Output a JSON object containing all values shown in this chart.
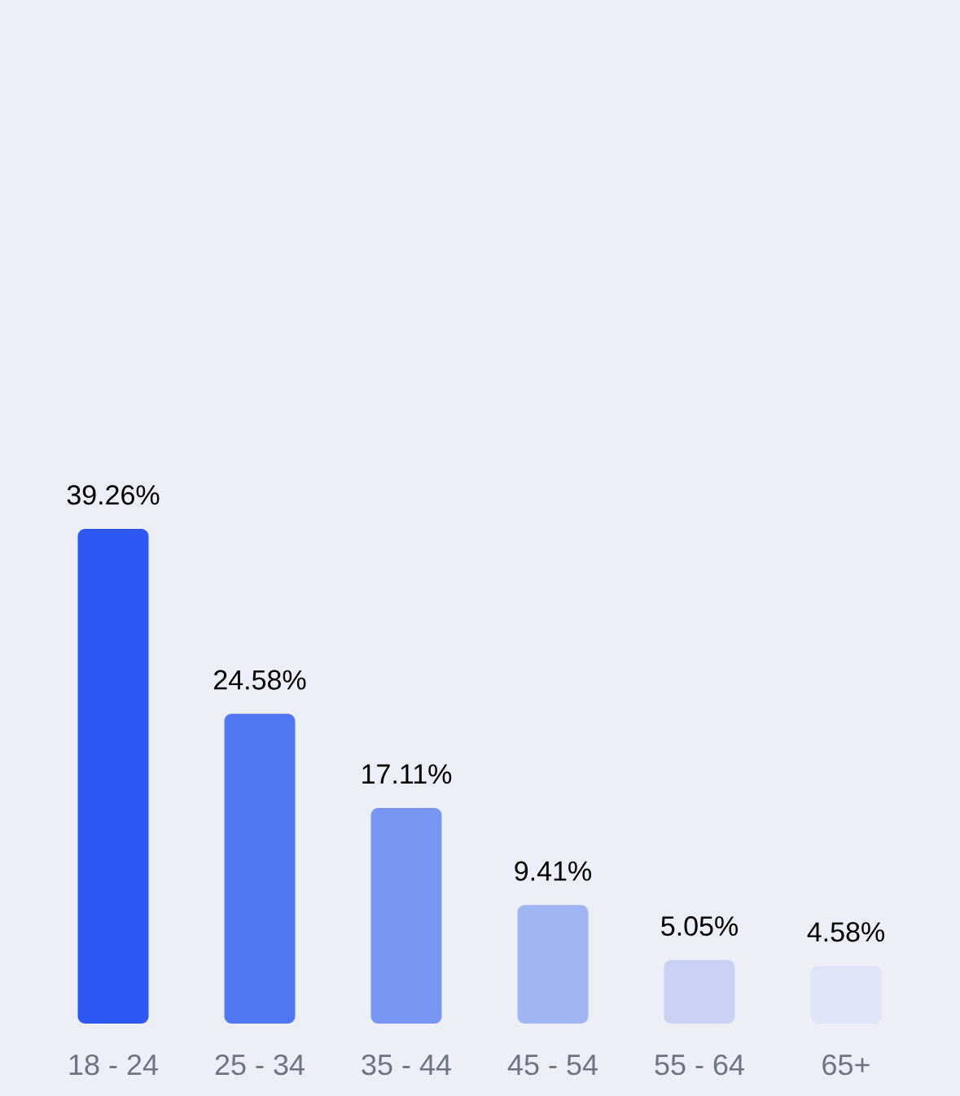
{
  "chart_data": {
    "type": "bar",
    "categories": [
      "18 - 24",
      "25 - 34",
      "35 - 44",
      "45 - 54",
      "55 - 64",
      "65+"
    ],
    "values": [
      39.26,
      24.58,
      17.11,
      9.41,
      5.05,
      4.58
    ],
    "value_labels": [
      "39.26%",
      "24.58%",
      "17.11%",
      "9.41%",
      "5.05%",
      "4.58%"
    ],
    "colors": [
      "#2f58f2",
      "#5177f3",
      "#7795f3",
      "#a1b4f4",
      "#c9d2f5",
      "#dfe4f6"
    ]
  }
}
